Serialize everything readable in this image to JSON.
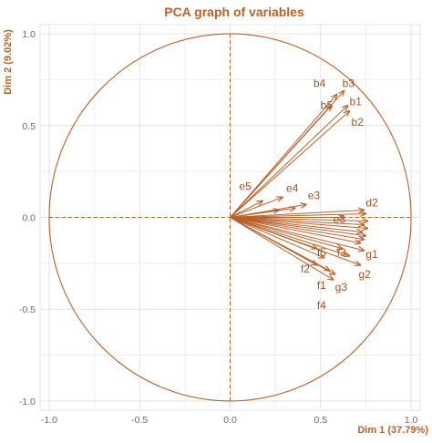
{
  "chart_data": {
    "type": "scatter",
    "title": "PCA graph of variables",
    "xlabel": "Dim 1 (37.79%)",
    "ylabel": "Dim 2 (9.02%)",
    "xlim": [
      -1.05,
      1.05
    ],
    "ylim": [
      -1.05,
      1.05
    ],
    "xticks": [
      "-1.0",
      "-0.5",
      "0.0",
      "0.5",
      "1.0"
    ],
    "yticks": [
      "-1.0",
      "-0.5",
      "0.0",
      "0.5",
      "1.0"
    ],
    "grid": true,
    "unit_circle": true,
    "accent_color": "#b8612a",
    "arrows": [
      {
        "label": "b4",
        "x": 0.59,
        "y": 0.67,
        "lx": 0.46,
        "ly": 0.73
      },
      {
        "label": "b3",
        "x": 0.63,
        "y": 0.69,
        "lx": 0.62,
        "ly": 0.73
      },
      {
        "label": "b5",
        "x": 0.56,
        "y": 0.61,
        "lx": 0.5,
        "ly": 0.61
      },
      {
        "label": "b1",
        "x": 0.65,
        "y": 0.61,
        "lx": 0.66,
        "ly": 0.63
      },
      {
        "label": "b2",
        "x": 0.66,
        "y": 0.58,
        "lx": 0.67,
        "ly": 0.52
      },
      {
        "label": "e5",
        "x": 0.18,
        "y": 0.09,
        "lx": 0.05,
        "ly": 0.17
      },
      {
        "label": "e4",
        "x": 0.29,
        "y": 0.11,
        "lx": 0.31,
        "ly": 0.16
      },
      {
        "label": "e3",
        "x": 0.42,
        "y": 0.07,
        "lx": 0.43,
        "ly": 0.12
      },
      {
        "label": "d2",
        "x": 0.74,
        "y": 0.04,
        "lx": 0.75,
        "ly": 0.08
      },
      {
        "label": "e3",
        "x": 0.63,
        "y": 0.0,
        "lx": 0.57,
        "ly": -0.01
      },
      {
        "label": "f5",
        "x": 0.48,
        "y": -0.17,
        "lx": 0.48,
        "ly": -0.19
      },
      {
        "label": "f3",
        "x": 0.62,
        "y": -0.17,
        "lx": 0.59,
        "ly": -0.19
      },
      {
        "label": "g1",
        "x": 0.74,
        "y": -0.18,
        "lx": 0.75,
        "ly": -0.2
      },
      {
        "label": "f2",
        "x": 0.48,
        "y": -0.26,
        "lx": 0.39,
        "ly": -0.28
      },
      {
        "label": "g2",
        "x": 0.72,
        "y": -0.26,
        "lx": 0.71,
        "ly": -0.31
      },
      {
        "label": "f1",
        "x": 0.55,
        "y": -0.29,
        "lx": 0.48,
        "ly": -0.37
      },
      {
        "label": "g3",
        "x": 0.58,
        "y": -0.31,
        "lx": 0.58,
        "ly": -0.38
      },
      {
        "label": "f4",
        "x": 0.57,
        "y": -0.34,
        "lx": 0.48,
        "ly": -0.48
      }
    ],
    "unlabeled_arrows": [
      {
        "x": 0.36,
        "y": 0.05
      },
      {
        "x": 0.27,
        "y": 0.04
      },
      {
        "x": 0.75,
        "y": 0.02
      },
      {
        "x": 0.76,
        "y": -0.02
      },
      {
        "x": 0.74,
        "y": -0.04
      },
      {
        "x": 0.76,
        "y": -0.06
      },
      {
        "x": 0.73,
        "y": -0.08
      },
      {
        "x": 0.75,
        "y": -0.1
      },
      {
        "x": 0.74,
        "y": -0.12
      },
      {
        "x": 0.72,
        "y": -0.14
      },
      {
        "x": 0.66,
        "y": -0.21
      },
      {
        "x": 0.52,
        "y": -0.22
      }
    ]
  }
}
